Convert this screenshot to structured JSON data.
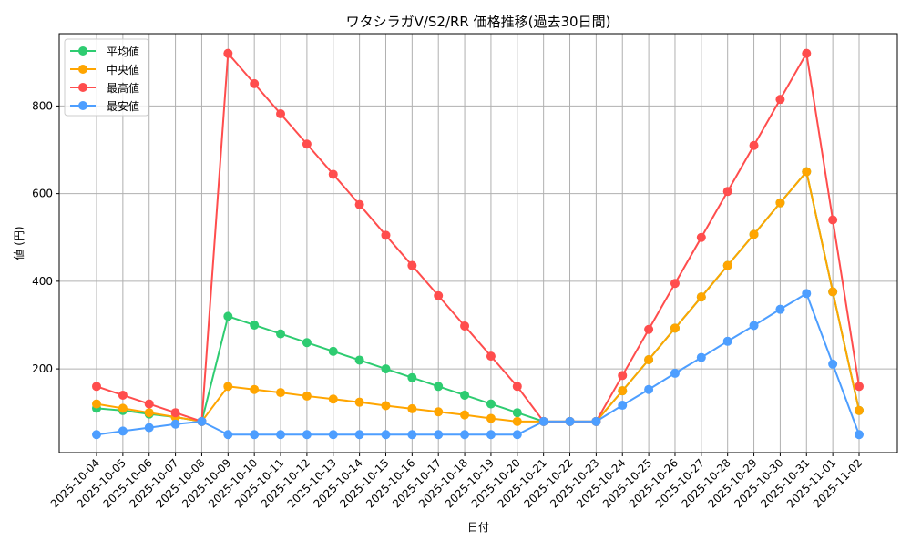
{
  "chart_data": {
    "type": "line",
    "title": "ワタシラガV/S2/RR 価格推移(過去30日間)",
    "xlabel": "日付",
    "ylabel": "値 (円)",
    "ylim": [
      9,
      965
    ],
    "yticks": [
      200,
      400,
      600,
      800
    ],
    "grid": true,
    "legend_position": "top-left",
    "categories": [
      "2025-10-04",
      "2025-10-05",
      "2025-10-06",
      "2025-10-07",
      "2025-10-08",
      "2025-10-09",
      "2025-10-10",
      "2025-10-11",
      "2025-10-12",
      "2025-10-13",
      "2025-10-14",
      "2025-10-15",
      "2025-10-16",
      "2025-10-17",
      "2025-10-18",
      "2025-10-19",
      "2025-10-20",
      "2025-10-21",
      "2025-10-22",
      "2025-10-23",
      "2025-10-24",
      "2025-10-25",
      "2025-10-26",
      "2025-10-27",
      "2025-10-28",
      "2025-10-29",
      "2025-10-30",
      "2025-10-31",
      "2025-11-01",
      "2025-11-02"
    ],
    "series": [
      {
        "name": "平均値",
        "color": "#2ecc71",
        "values": [
          110,
          105,
          97,
          90,
          80,
          320,
          300,
          280,
          260,
          240,
          220,
          200,
          180,
          160,
          140,
          120,
          100,
          80,
          80,
          80,
          150,
          221,
          293,
          364,
          436,
          507,
          579,
          650,
          376,
          105
        ]
      },
      {
        "name": "中央値",
        "color": "#ffa500",
        "values": [
          120,
          110,
          100,
          90,
          80,
          160,
          153,
          146,
          138,
          131,
          124,
          116,
          109,
          102,
          95,
          87,
          80,
          80,
          80,
          80,
          150,
          221,
          293,
          364,
          436,
          507,
          579,
          650,
          376,
          105
        ]
      },
      {
        "name": "最高値",
        "color": "#ff4d4d",
        "values": [
          160,
          140,
          120,
          100,
          80,
          920,
          851,
          782,
          713,
          644,
          575,
          505,
          436,
          367,
          298,
          229,
          160,
          80,
          80,
          80,
          185,
          290,
          395,
          500,
          605,
          710,
          815,
          920,
          540,
          160
        ]
      },
      {
        "name": "最安値",
        "color": "#4d9eff",
        "values": [
          50,
          58,
          66,
          74,
          80,
          50,
          50,
          50,
          50,
          50,
          50,
          50,
          50,
          50,
          50,
          50,
          50,
          80,
          80,
          80,
          117,
          153,
          190,
          226,
          263,
          299,
          336,
          372,
          211,
          50
        ]
      }
    ]
  }
}
